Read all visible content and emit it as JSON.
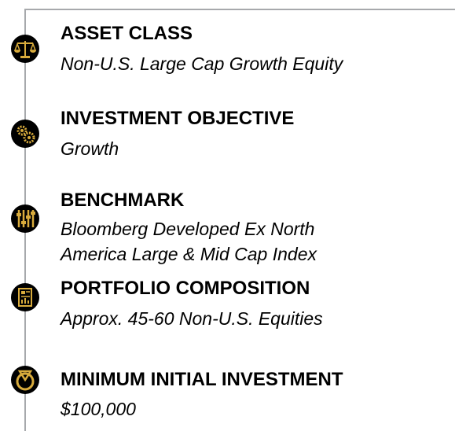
{
  "items": [
    {
      "label": "ASSET CLASS",
      "value": [
        "Non-U.S. Large Cap Growth Equity"
      ]
    },
    {
      "label": "INVESTMENT OBJECTIVE",
      "value": [
        "Growth"
      ]
    },
    {
      "label": "BENCHMARK",
      "value": [
        "Bloomberg Developed Ex North",
        "America Large & Mid Cap Index"
      ]
    },
    {
      "label": "PORTFOLIO COMPOSITION",
      "value": [
        "Approx. 45-60 Non-U.S. Equities"
      ]
    },
    {
      "label": "MINIMUM INITIAL INVESTMENT",
      "value": [
        "$100,000"
      ]
    }
  ]
}
